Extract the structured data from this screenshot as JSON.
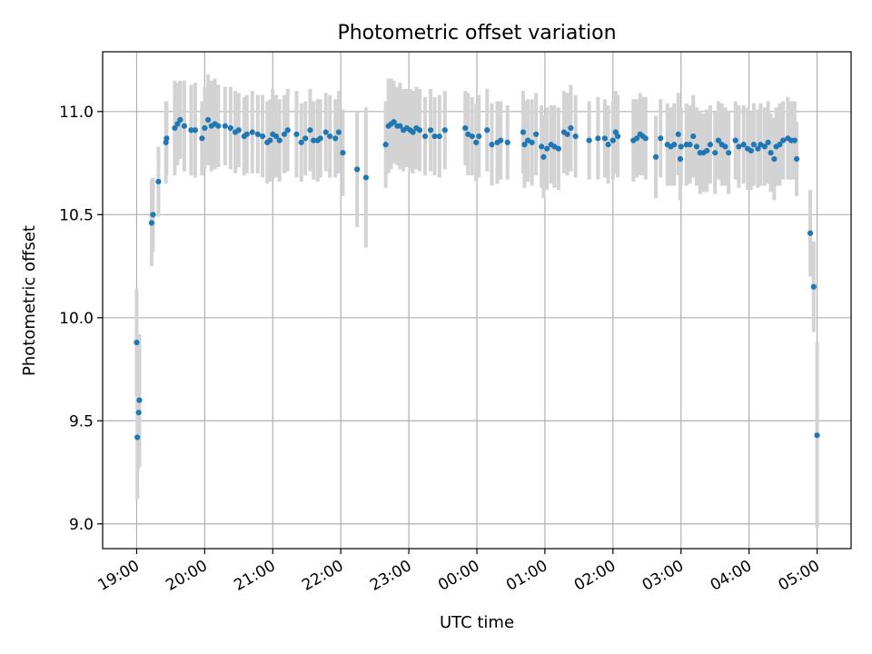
{
  "colors": {
    "point": "#1f77b4",
    "errorbar": "#d3d3d3",
    "grid": "#b0b0b0"
  },
  "chart_data": {
    "type": "scatter",
    "title": "Photometric offset variation",
    "xlabel": "UTC time",
    "ylabel": "Photometric offset",
    "x_unit": "hours since 19:00 UTC",
    "xlim": [
      -0.5,
      10.5
    ],
    "ylim": [
      8.88,
      11.29
    ],
    "grid": true,
    "x_ticks": [
      {
        "value": 0,
        "label": "19:00"
      },
      {
        "value": 1,
        "label": "20:00"
      },
      {
        "value": 2,
        "label": "21:00"
      },
      {
        "value": 3,
        "label": "22:00"
      },
      {
        "value": 4,
        "label": "23:00"
      },
      {
        "value": 5,
        "label": "00:00"
      },
      {
        "value": 6,
        "label": "01:00"
      },
      {
        "value": 7,
        "label": "02:00"
      },
      {
        "value": 8,
        "label": "03:00"
      },
      {
        "value": 9,
        "label": "04:00"
      },
      {
        "value": 10,
        "label": "05:00"
      }
    ],
    "y_ticks": [
      {
        "value": 9.0,
        "label": "9.0"
      },
      {
        "value": 9.5,
        "label": "9.5"
      },
      {
        "value": 10.0,
        "label": "10.0"
      },
      {
        "value": 10.5,
        "label": "10.5"
      },
      {
        "value": 11.0,
        "label": "11.0"
      }
    ],
    "series": [
      {
        "name": "offset",
        "points": [
          [
            0.0,
            9.88,
            0.26
          ],
          [
            0.01,
            9.42,
            0.3
          ],
          [
            0.03,
            9.54,
            0.27
          ],
          [
            0.04,
            9.6,
            0.32
          ],
          [
            0.22,
            10.46,
            0.21
          ],
          [
            0.24,
            10.5,
            0.18
          ],
          [
            0.32,
            10.66,
            0.17
          ],
          [
            0.43,
            10.85,
            0.2
          ],
          [
            0.44,
            10.87,
            0.18
          ],
          [
            0.56,
            10.92,
            0.23
          ],
          [
            0.6,
            10.94,
            0.2
          ],
          [
            0.64,
            10.96,
            0.19
          ],
          [
            0.7,
            10.93,
            0.22
          ],
          [
            0.8,
            10.91,
            0.22
          ],
          [
            0.86,
            10.91,
            0.23
          ],
          [
            0.96,
            10.87,
            0.18
          ],
          [
            1.0,
            10.92,
            0.2
          ],
          [
            1.05,
            10.96,
            0.22
          ],
          [
            1.1,
            10.93,
            0.22
          ],
          [
            1.15,
            10.94,
            0.22
          ],
          [
            1.2,
            10.93,
            0.2
          ],
          [
            1.3,
            10.93,
            0.19
          ],
          [
            1.38,
            10.92,
            0.2
          ],
          [
            1.45,
            10.9,
            0.2
          ],
          [
            1.5,
            10.91,
            0.18
          ],
          [
            1.58,
            10.88,
            0.19
          ],
          [
            1.62,
            10.89,
            0.19
          ],
          [
            1.7,
            10.9,
            0.2
          ],
          [
            1.78,
            10.89,
            0.19
          ],
          [
            1.85,
            10.88,
            0.2
          ],
          [
            1.92,
            10.85,
            0.2
          ],
          [
            1.96,
            10.86,
            0.2
          ],
          [
            2.0,
            10.89,
            0.22
          ],
          [
            2.05,
            10.88,
            0.2
          ],
          [
            2.1,
            10.86,
            0.2
          ],
          [
            2.17,
            10.89,
            0.19
          ],
          [
            2.22,
            10.91,
            0.2
          ],
          [
            2.35,
            10.89,
            0.21
          ],
          [
            2.42,
            10.85,
            0.19
          ],
          [
            2.48,
            10.87,
            0.18
          ],
          [
            2.55,
            10.91,
            0.2
          ],
          [
            2.6,
            10.86,
            0.19
          ],
          [
            2.66,
            10.86,
            0.2
          ],
          [
            2.7,
            10.87,
            0.19
          ],
          [
            2.78,
            10.9,
            0.19
          ],
          [
            2.84,
            10.88,
            0.2
          ],
          [
            2.92,
            10.87,
            0.19
          ],
          [
            2.97,
            10.9,
            0.2
          ],
          [
            3.03,
            10.8,
            0.21
          ],
          [
            3.24,
            10.72,
            0.28
          ],
          [
            3.37,
            10.68,
            0.34
          ],
          [
            3.66,
            10.84,
            0.21
          ],
          [
            3.7,
            10.93,
            0.23
          ],
          [
            3.74,
            10.94,
            0.22
          ],
          [
            3.78,
            10.95,
            0.2
          ],
          [
            3.83,
            10.93,
            0.19
          ],
          [
            3.87,
            10.93,
            0.21
          ],
          [
            3.92,
            10.91,
            0.2
          ],
          [
            3.97,
            10.92,
            0.19
          ],
          [
            4.02,
            10.91,
            0.2
          ],
          [
            4.06,
            10.9,
            0.2
          ],
          [
            4.11,
            10.92,
            0.2
          ],
          [
            4.16,
            10.91,
            0.2
          ],
          [
            4.24,
            10.88,
            0.19
          ],
          [
            4.32,
            10.91,
            0.2
          ],
          [
            4.38,
            10.88,
            0.19
          ],
          [
            4.45,
            10.88,
            0.2
          ],
          [
            4.53,
            10.91,
            0.19
          ],
          [
            4.83,
            10.92,
            0.18
          ],
          [
            4.87,
            10.89,
            0.2
          ],
          [
            4.93,
            10.88,
            0.19
          ],
          [
            4.99,
            10.85,
            0.19
          ],
          [
            5.03,
            10.88,
            0.2
          ],
          [
            5.15,
            10.91,
            0.2
          ],
          [
            5.22,
            10.84,
            0.2
          ],
          [
            5.3,
            10.85,
            0.2
          ],
          [
            5.35,
            10.86,
            0.19
          ],
          [
            5.45,
            10.85,
            0.18
          ],
          [
            5.68,
            10.9,
            0.2
          ],
          [
            5.7,
            10.84,
            0.21
          ],
          [
            5.75,
            10.86,
            0.2
          ],
          [
            5.81,
            10.85,
            0.21
          ],
          [
            5.87,
            10.89,
            0.2
          ],
          [
            5.95,
            10.83,
            0.2
          ],
          [
            5.98,
            10.78,
            0.2
          ],
          [
            6.03,
            10.82,
            0.2
          ],
          [
            6.09,
            10.84,
            0.19
          ],
          [
            6.14,
            10.83,
            0.2
          ],
          [
            6.2,
            10.82,
            0.2
          ],
          [
            6.28,
            10.9,
            0.2
          ],
          [
            6.33,
            10.89,
            0.2
          ],
          [
            6.38,
            10.92,
            0.21
          ],
          [
            6.45,
            10.88,
            0.2
          ],
          [
            6.65,
            10.86,
            0.19
          ],
          [
            6.78,
            10.87,
            0.2
          ],
          [
            6.88,
            10.87,
            0.19
          ],
          [
            6.93,
            10.84,
            0.19
          ],
          [
            7.0,
            10.86,
            0.19
          ],
          [
            7.04,
            10.9,
            0.2
          ],
          [
            7.07,
            10.88,
            0.2
          ],
          [
            7.3,
            10.86,
            0.2
          ],
          [
            7.35,
            10.87,
            0.19
          ],
          [
            7.4,
            10.89,
            0.2
          ],
          [
            7.44,
            10.88,
            0.19
          ],
          [
            7.48,
            10.87,
            0.2
          ],
          [
            7.63,
            10.78,
            0.2
          ],
          [
            7.7,
            10.87,
            0.19
          ],
          [
            7.8,
            10.84,
            0.2
          ],
          [
            7.85,
            10.83,
            0.19
          ],
          [
            7.9,
            10.84,
            0.2
          ],
          [
            7.96,
            10.89,
            0.2
          ],
          [
            7.99,
            10.77,
            0.2
          ],
          [
            8.0,
            10.83,
            0.19
          ],
          [
            8.08,
            10.84,
            0.2
          ],
          [
            8.13,
            10.84,
            0.19
          ],
          [
            8.18,
            10.88,
            0.2
          ],
          [
            8.23,
            10.83,
            0.19
          ],
          [
            8.28,
            10.8,
            0.2
          ],
          [
            8.33,
            10.8,
            0.19
          ],
          [
            8.38,
            10.81,
            0.2
          ],
          [
            8.43,
            10.84,
            0.19
          ],
          [
            8.5,
            10.8,
            0.2
          ],
          [
            8.55,
            10.86,
            0.19
          ],
          [
            8.6,
            10.84,
            0.2
          ],
          [
            8.65,
            10.83,
            0.19
          ],
          [
            8.7,
            10.8,
            0.2
          ],
          [
            8.8,
            10.86,
            0.19
          ],
          [
            8.85,
            10.83,
            0.2
          ],
          [
            8.92,
            10.84,
            0.19
          ],
          [
            8.98,
            10.82,
            0.2
          ],
          [
            9.03,
            10.81,
            0.19
          ],
          [
            9.07,
            10.84,
            0.2
          ],
          [
            9.13,
            10.82,
            0.19
          ],
          [
            9.17,
            10.84,
            0.2
          ],
          [
            9.23,
            10.83,
            0.19
          ],
          [
            9.28,
            10.85,
            0.2
          ],
          [
            9.32,
            10.8,
            0.19
          ],
          [
            9.37,
            10.77,
            0.2
          ],
          [
            9.4,
            10.83,
            0.19
          ],
          [
            9.45,
            10.84,
            0.2
          ],
          [
            9.5,
            10.86,
            0.19
          ],
          [
            9.57,
            10.87,
            0.2
          ],
          [
            9.62,
            10.86,
            0.19
          ],
          [
            9.67,
            10.86,
            0.19
          ],
          [
            9.7,
            10.77,
            0.18
          ],
          [
            9.9,
            10.41,
            0.21
          ],
          [
            9.95,
            10.15,
            0.22
          ],
          [
            10.0,
            9.43,
            0.45
          ]
        ]
      }
    ]
  }
}
